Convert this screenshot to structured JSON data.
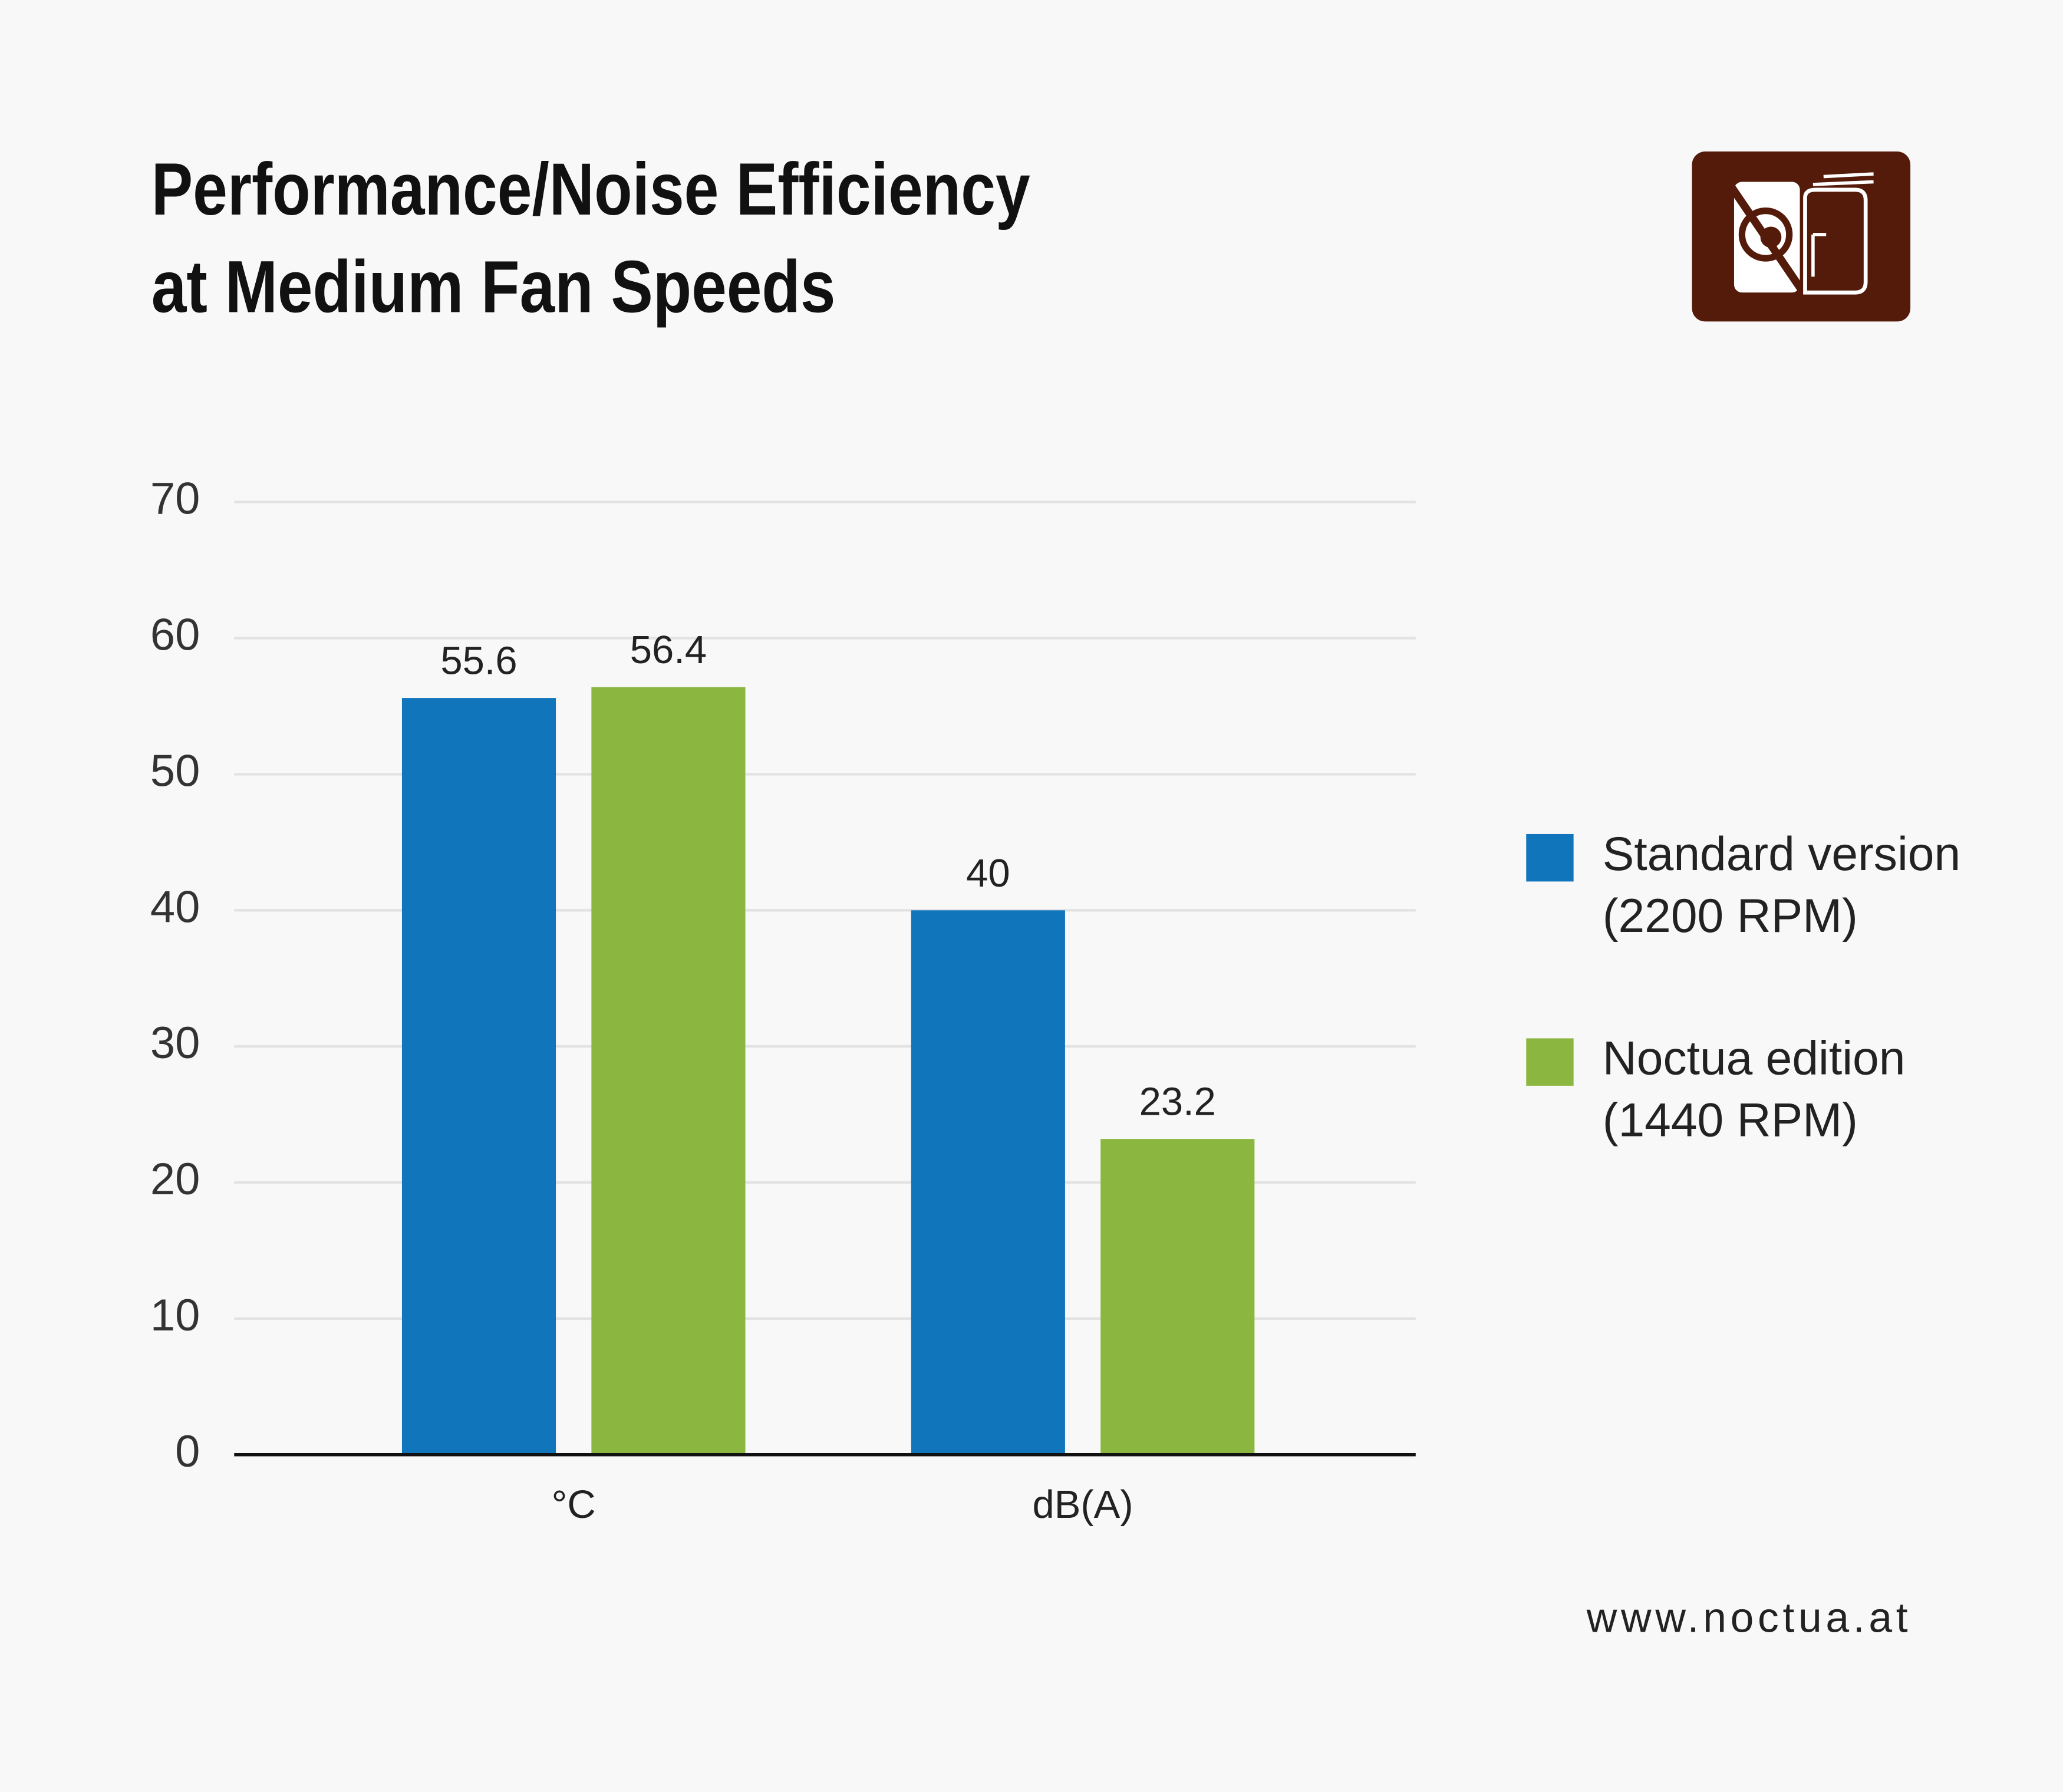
{
  "chart_data": {
    "type": "bar",
    "title": [
      "Performance/Noise Efficiency",
      "at Medium Fan Speeds"
    ],
    "categories": [
      "°C",
      "dB(A)"
    ],
    "series": [
      {
        "name": "Standard version (2200 RPM)",
        "color": "#1175bc",
        "values": [
          55.6,
          40
        ]
      },
      {
        "name": "Noctua edition (1440 RPM)",
        "color": "#8bb741",
        "values": [
          56.4,
          23.2
        ]
      }
    ],
    "ylim": [
      0,
      70
    ],
    "yticks": [
      0,
      10,
      20,
      30,
      40,
      50,
      60,
      70
    ],
    "grid": true,
    "legend": "right",
    "footer": "www.noctua.at"
  }
}
